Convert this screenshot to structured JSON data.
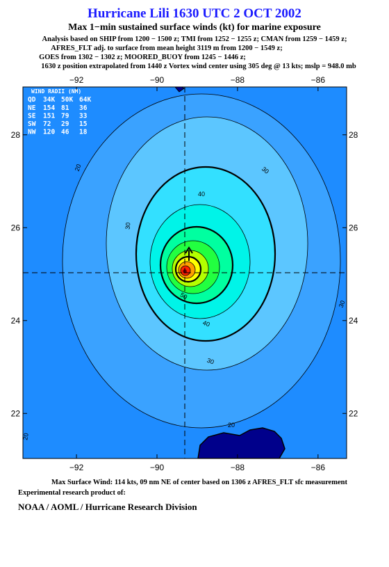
{
  "header": {
    "title": "Hurricane Lili 1630 UTC 2 OCT 2002",
    "subtitle": "Max 1−min sustained surface winds (kt) for marine exposure",
    "lines": [
      "Analysis based on  SHIP from 1200 − 1500 z;  TMI from 1252 − 1255 z;  CMAN from 1259 − 1459 z;",
      "AFRES_FLT adj. to surface from mean height 3119 m from 1200 − 1549 z;",
      "GOES from 1302 − 1302 z;  MOORED_BUOY from 1245 − 1446 z;",
      "1630 z position extrapolated from 1440 z Vortex wind center using 305 deg @ 13 kts; mslp = 948.0 mb"
    ]
  },
  "map": {
    "xlim": [
      -93.33,
      -85.29
    ],
    "ylim": [
      21.03,
      29.03
    ],
    "xticks": [
      {
        "value": -92,
        "label": "−92"
      },
      {
        "value": -90,
        "label": "−90"
      },
      {
        "value": -88,
        "label": "−88"
      },
      {
        "value": -86,
        "label": "−86"
      }
    ],
    "yticks": [
      22,
      24,
      26,
      28
    ],
    "contour_labels": [
      "20",
      "20",
      "20",
      "30",
      "30",
      "30",
      "30",
      "40",
      "40",
      "50"
    ],
    "wind_radii": {
      "title": "WIND RADII (NM)",
      "columns": [
        "QD",
        "34K",
        "50K",
        "64K"
      ],
      "rows": [
        [
          "NE",
          "154",
          "81",
          "36"
        ],
        [
          "SE",
          "151",
          "79",
          "33"
        ],
        [
          "SW",
          "72",
          "29",
          "15"
        ],
        [
          "NW",
          "120",
          "46",
          "18"
        ]
      ]
    }
  },
  "footer": {
    "max_wind": "Max Surface Wind: 114 kts, 09 nm NE of center based on 1306 z AFRES_FLT sfc measurement",
    "note": "Experimental research product of:",
    "org": "NOAA / AOML / Hurricane Research Division"
  }
}
